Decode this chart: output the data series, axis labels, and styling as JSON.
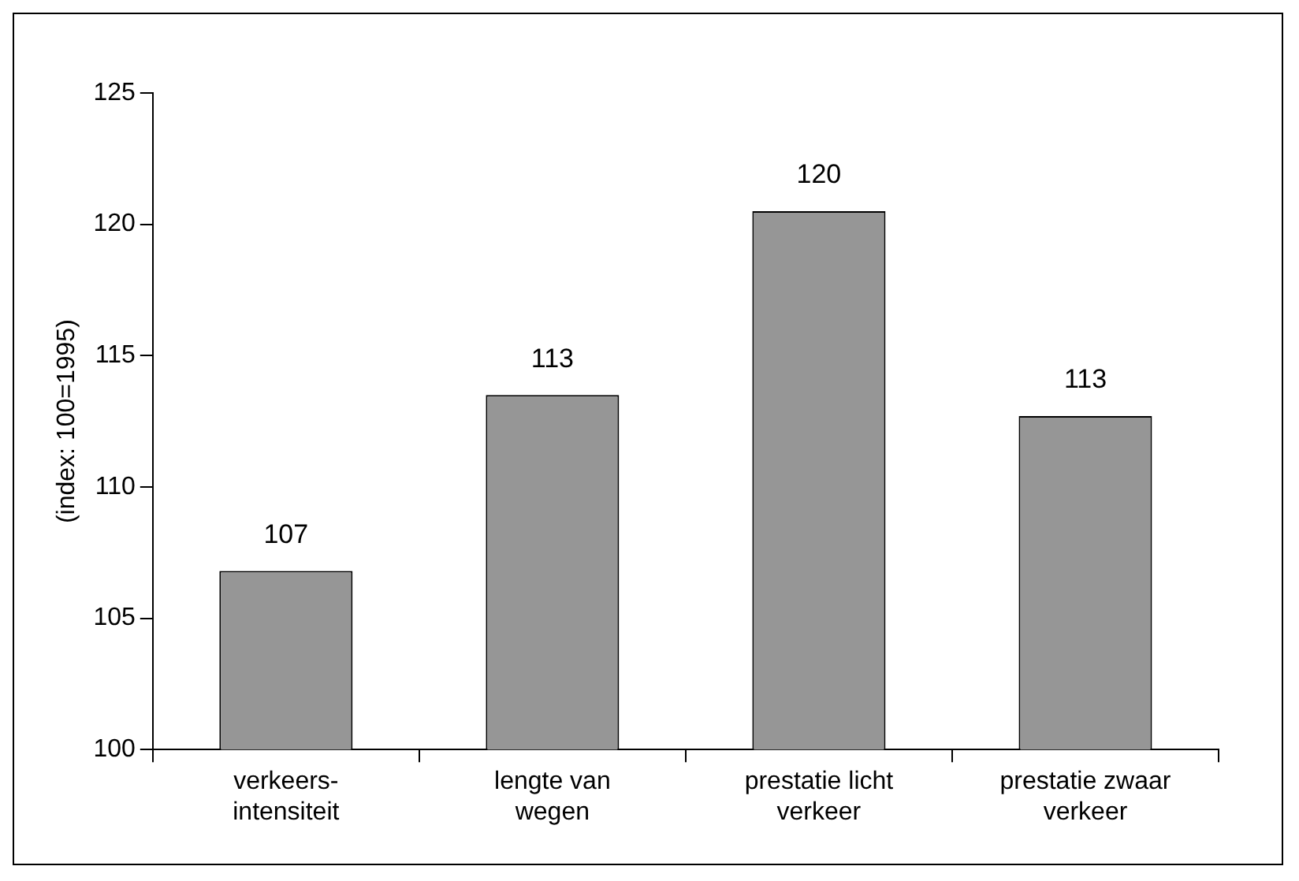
{
  "chart_data": {
    "type": "bar",
    "ylabel": "(index: 100=1995)",
    "categories": [
      "verkeers-\nintensiteit",
      "lengte van\nwegen",
      "prestatie licht\nverkeer",
      "prestatie zwaar\nverkeer"
    ],
    "values": [
      106.8,
      113.5,
      120.5,
      112.7
    ],
    "value_labels": [
      "107",
      "113",
      "120",
      "113"
    ],
    "color": "#969696",
    "ylim": [
      100,
      125
    ],
    "yticks": [
      100,
      105,
      110,
      115,
      120,
      125
    ],
    "grid": false,
    "legend": false
  }
}
